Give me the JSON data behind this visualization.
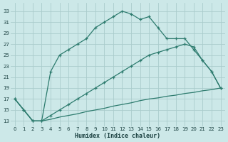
{
  "xlabel": "Humidex (Indice chaleur)",
  "bg_color": "#cce8e8",
  "grid_color": "#aacccc",
  "line_color": "#2d7b6e",
  "xlim": [
    -0.5,
    23.5
  ],
  "ylim": [
    12,
    34.5
  ],
  "yticks": [
    13,
    15,
    17,
    19,
    21,
    23,
    25,
    27,
    29,
    31,
    33
  ],
  "xticks": [
    0,
    1,
    2,
    3,
    4,
    5,
    6,
    7,
    8,
    9,
    10,
    11,
    12,
    13,
    14,
    15,
    16,
    17,
    18,
    19,
    20,
    21,
    22,
    23
  ],
  "line1_x": [
    0,
    1,
    2,
    3,
    4,
    5,
    6,
    7,
    8,
    9,
    10,
    11,
    12,
    13,
    14,
    15,
    16,
    17,
    18,
    19,
    20,
    21,
    22,
    23
  ],
  "line1_y": [
    17,
    15,
    13,
    13,
    22,
    25,
    26,
    27,
    28,
    30,
    31,
    32,
    33,
    32.5,
    31.5,
    32,
    30,
    28,
    28,
    28,
    26,
    24,
    22,
    19
  ],
  "line2_x": [
    0,
    1,
    2,
    3,
    4,
    5,
    6,
    7,
    8,
    9,
    10,
    11,
    12,
    13,
    14,
    15,
    16,
    17,
    18,
    19,
    20,
    21,
    22,
    23
  ],
  "line2_y": [
    17,
    15,
    13,
    13,
    14,
    15,
    16,
    17,
    18,
    19,
    20,
    21,
    22,
    23,
    24,
    25,
    25.5,
    26,
    26.5,
    27,
    26.5,
    24,
    22,
    19
  ],
  "line3_x": [
    0,
    1,
    2,
    3,
    4,
    5,
    6,
    7,
    8,
    9,
    10,
    11,
    12,
    13,
    14,
    15,
    16,
    17,
    18,
    19,
    20,
    21,
    22,
    23
  ],
  "line3_y": [
    17,
    15,
    13,
    13,
    13.3,
    13.7,
    14,
    14.3,
    14.7,
    15,
    15.3,
    15.7,
    16,
    16.3,
    16.7,
    17,
    17.2,
    17.5,
    17.7,
    18,
    18.2,
    18.5,
    18.7,
    19
  ]
}
